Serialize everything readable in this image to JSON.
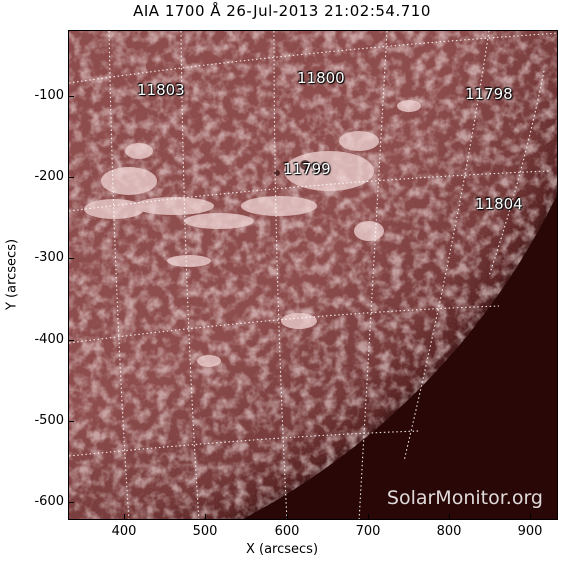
{
  "title": "AIA 1700 Å 26-Jul-2013 21:02:54.710",
  "axes": {
    "xlabel": "X (arcsecs)",
    "ylabel": "Y (arcsecs)",
    "xticks": [
      "400",
      "500",
      "600",
      "700",
      "800",
      "900"
    ],
    "yticks": [
      "-100",
      "-200",
      "-300",
      "-400",
      "-500",
      "-600"
    ]
  },
  "regions": [
    "11803",
    "11800",
    "11798",
    "11799",
    "11804"
  ],
  "watermark": "SolarMonitor.org",
  "colors": {
    "disk_dark": "#5b1f1f",
    "disk_mid": "#8a4545",
    "plage": "#e9c9c9",
    "background": "#2a0707",
    "grid": "#ffffff"
  }
}
